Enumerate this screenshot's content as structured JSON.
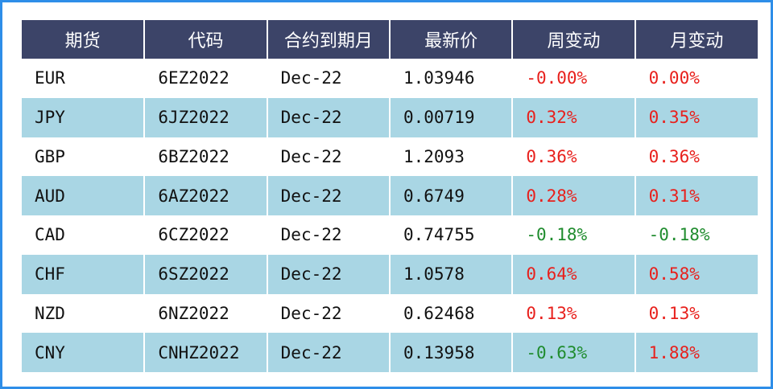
{
  "table": {
    "headers": [
      "期货",
      "代码",
      "合约到期月",
      "最新价",
      "周变动",
      "月变动"
    ],
    "rows": [
      {
        "currency": "EUR",
        "code": "6EZ2022",
        "expiry": "Dec-22",
        "price": "1.03946",
        "week": "-0.00%",
        "month": "0.00%",
        "week_dir": "pos",
        "month_dir": "pos"
      },
      {
        "currency": "JPY",
        "code": "6JZ2022",
        "expiry": "Dec-22",
        "price": "0.00719",
        "week": "0.32%",
        "month": "0.35%",
        "week_dir": "pos",
        "month_dir": "pos"
      },
      {
        "currency": "GBP",
        "code": "6BZ2022",
        "expiry": "Dec-22",
        "price": "1.2093",
        "week": "0.36%",
        "month": "0.36%",
        "week_dir": "pos",
        "month_dir": "pos"
      },
      {
        "currency": "AUD",
        "code": "6AZ2022",
        "expiry": "Dec-22",
        "price": "0.6749",
        "week": "0.28%",
        "month": "0.31%",
        "week_dir": "pos",
        "month_dir": "pos"
      },
      {
        "currency": "CAD",
        "code": "6CZ2022",
        "expiry": "Dec-22",
        "price": "0.74755",
        "week": "-0.18%",
        "month": "-0.18%",
        "week_dir": "neg",
        "month_dir": "neg"
      },
      {
        "currency": "CHF",
        "code": "6SZ2022",
        "expiry": "Dec-22",
        "price": "1.0578",
        "week": "0.64%",
        "month": "0.58%",
        "week_dir": "pos",
        "month_dir": "pos"
      },
      {
        "currency": "NZD",
        "code": "6NZ2022",
        "expiry": "Dec-22",
        "price": "0.62468",
        "week": "0.13%",
        "month": "0.13%",
        "week_dir": "pos",
        "month_dir": "pos"
      },
      {
        "currency": "CNY",
        "code": "CNHZ2022",
        "expiry": "Dec-22",
        "price": "0.13958",
        "week": "-0.63%",
        "month": "1.88%",
        "week_dir": "neg",
        "month_dir": "pos"
      }
    ]
  },
  "colors": {
    "header_bg": "#3c4468",
    "stripe_bg": "#a9d6e4",
    "border": "#2e8ee8",
    "positive": "#e8201c",
    "negative": "#1f8c2e"
  }
}
